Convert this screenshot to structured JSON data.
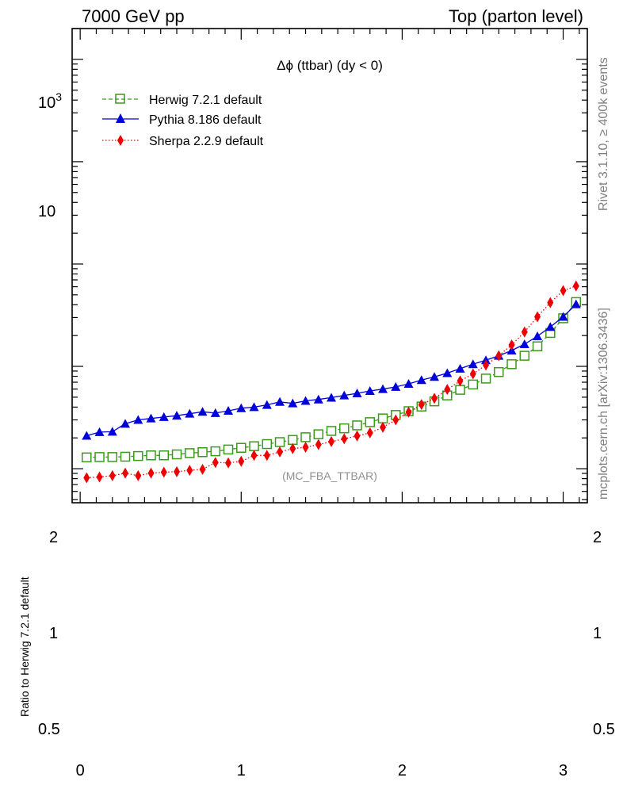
{
  "header": {
    "energy_label": "7000 GeV pp",
    "process_label": "Top (parton level)"
  },
  "side_text": {
    "rivet": "Rivet 3.1.10, ≥ 400k events",
    "mcplots": "mcplots.cern.ch [arXiv:1306.3436]"
  },
  "watermark": "(MC_FBA_TTBAR)",
  "chart_data": {
    "type": "line",
    "title": "Δϕ (ttbar) (dy < 0)",
    "xlabel": "",
    "ylabel": "",
    "log_y": true,
    "xlim": [
      -0.05,
      3.15
    ],
    "ylim": [
      0.0465,
      2000
    ],
    "y_major_ticks": [
      {
        "value": 10,
        "label": "10"
      },
      {
        "value": 1000,
        "label": "10^3"
      }
    ],
    "x_ticks": [
      0,
      1,
      2,
      3
    ],
    "x_tick_labels": [
      "0",
      "1",
      "2",
      "3"
    ],
    "legend_position": "top-left",
    "x": [
      0.04,
      0.12,
      0.2,
      0.28,
      0.36,
      0.44,
      0.52,
      0.6,
      0.68,
      0.76,
      0.84,
      0.92,
      1.0,
      1.08,
      1.16,
      1.24,
      1.32,
      1.4,
      1.48,
      1.56,
      1.64,
      1.72,
      1.8,
      1.88,
      1.96,
      2.04,
      2.12,
      2.2,
      2.28,
      2.36,
      2.44,
      2.52,
      2.6,
      2.68,
      2.76,
      2.84,
      2.92,
      3.0,
      3.08
    ],
    "series": [
      {
        "name": "Herwig 7.2.1 default",
        "color": "#3a9a1a",
        "marker": "open-square",
        "line_style": "dashed",
        "values": [
          0.129,
          0.13,
          0.13,
          0.131,
          0.133,
          0.135,
          0.135,
          0.138,
          0.142,
          0.145,
          0.148,
          0.154,
          0.16,
          0.166,
          0.174,
          0.182,
          0.191,
          0.203,
          0.217,
          0.234,
          0.248,
          0.265,
          0.285,
          0.31,
          0.335,
          0.365,
          0.405,
          0.455,
          0.52,
          0.59,
          0.665,
          0.76,
          0.88,
          1.05,
          1.27,
          1.57,
          2.12,
          2.95,
          4.25
        ]
      },
      {
        "name": "Pythia 8.186 default",
        "color": "#0000dd",
        "marker": "filled-triangle",
        "line_style": "solid",
        "values": [
          0.21,
          0.228,
          0.23,
          0.275,
          0.3,
          0.31,
          0.32,
          0.33,
          0.345,
          0.36,
          0.35,
          0.368,
          0.39,
          0.4,
          0.42,
          0.45,
          0.435,
          0.46,
          0.475,
          0.495,
          0.52,
          0.545,
          0.575,
          0.6,
          0.63,
          0.675,
          0.735,
          0.79,
          0.86,
          0.95,
          1.05,
          1.15,
          1.27,
          1.43,
          1.65,
          1.97,
          2.43,
          3.05,
          4.05
        ]
      },
      {
        "name": "Sherpa 2.2.9 default",
        "color": "#ee0000",
        "marker": "filled-diamond",
        "line_style": "dotted",
        "values": [
          0.0815,
          0.083,
          0.0855,
          0.0905,
          0.0855,
          0.0905,
          0.0925,
          0.0935,
          0.0965,
          0.0985,
          0.115,
          0.114,
          0.118,
          0.135,
          0.135,
          0.146,
          0.157,
          0.162,
          0.172,
          0.184,
          0.196,
          0.209,
          0.224,
          0.254,
          0.3,
          0.357,
          0.424,
          0.487,
          0.595,
          0.72,
          0.845,
          1.03,
          1.27,
          1.62,
          2.17,
          3.05,
          4.2,
          5.5,
          6.1
        ]
      }
    ],
    "ratio_panel": {
      "ylabel": "Ratio to Herwig 7.2.1 default",
      "y_tick_labels": [
        "2",
        "1",
        "0.5"
      ]
    }
  }
}
